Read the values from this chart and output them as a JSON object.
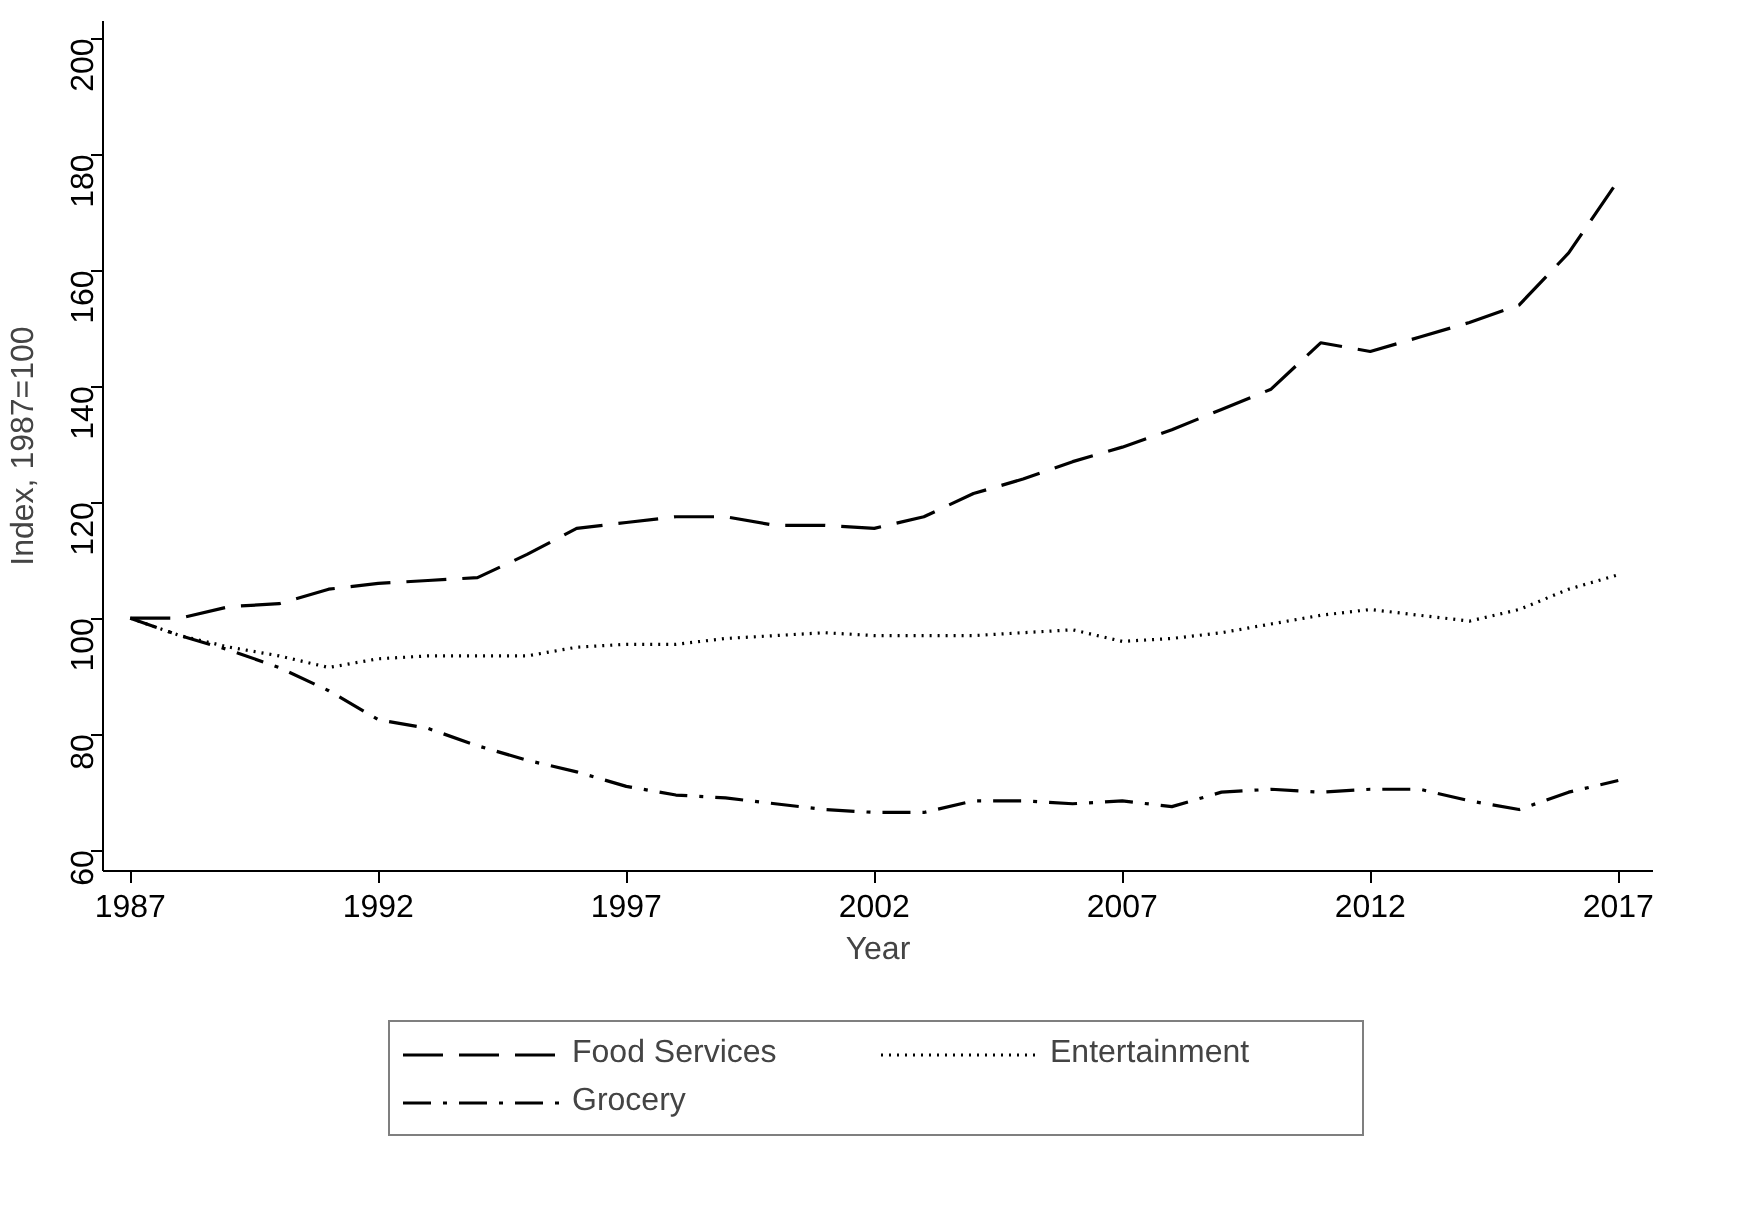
{
  "chart_data": {
    "type": "line",
    "xlabel": "Year",
    "ylabel": "Index, 1987=100",
    "x": [
      1987,
      1988,
      1989,
      1990,
      1991,
      1992,
      1993,
      1994,
      1995,
      1996,
      1997,
      1998,
      1999,
      2000,
      2001,
      2002,
      2003,
      2004,
      2005,
      2006,
      2007,
      2008,
      2009,
      2010,
      2011,
      2012,
      2013,
      2014,
      2015,
      2016,
      2017
    ],
    "series": [
      {
        "name": "Food Services",
        "color": "#000000",
        "line_style": "dashed",
        "values": [
          100,
          100,
          102,
          102.5,
          105,
          106,
          106.5,
          107,
          111,
          115.5,
          116.5,
          117.5,
          117.5,
          116,
          116,
          115.5,
          117.5,
          121.5,
          124,
          127,
          129.5,
          132.5,
          136,
          139.5,
          147.5,
          146,
          148.5,
          151,
          154,
          163,
          175.5
        ]
      },
      {
        "name": "Entertainment",
        "color": "#000000",
        "line_style": "dotted",
        "values": [
          100,
          97,
          95,
          93.5,
          91.5,
          93,
          93.5,
          93.5,
          93.5,
          95,
          95.5,
          95.5,
          96.5,
          97,
          97.5,
          97,
          97,
          97,
          97.5,
          98,
          96,
          96.5,
          97.5,
          99,
          100.5,
          101.5,
          100.5,
          99.5,
          101.5,
          105,
          107.5
        ]
      },
      {
        "name": "Grocery",
        "color": "#000000",
        "line_style": "dashdot",
        "values": [
          100,
          97,
          94.5,
          91.5,
          87.5,
          82.5,
          81,
          78,
          75.5,
          73.5,
          71,
          69.5,
          69,
          68,
          67,
          66.5,
          66.5,
          68.5,
          68.5,
          68,
          68.5,
          67.5,
          70,
          70.5,
          70,
          70.5,
          70.5,
          68.5,
          67,
          70,
          72
        ]
      }
    ],
    "xlim": [
      1986.45,
      2017.7
    ],
    "xticks": [
      1987,
      1992,
      1997,
      2002,
      2007,
      2012,
      2017
    ],
    "ylim": [
      56.4,
      203
    ],
    "yticks": [
      60,
      80,
      100,
      120,
      140,
      160,
      180,
      200
    ],
    "grid": false,
    "legend": "bottom"
  }
}
